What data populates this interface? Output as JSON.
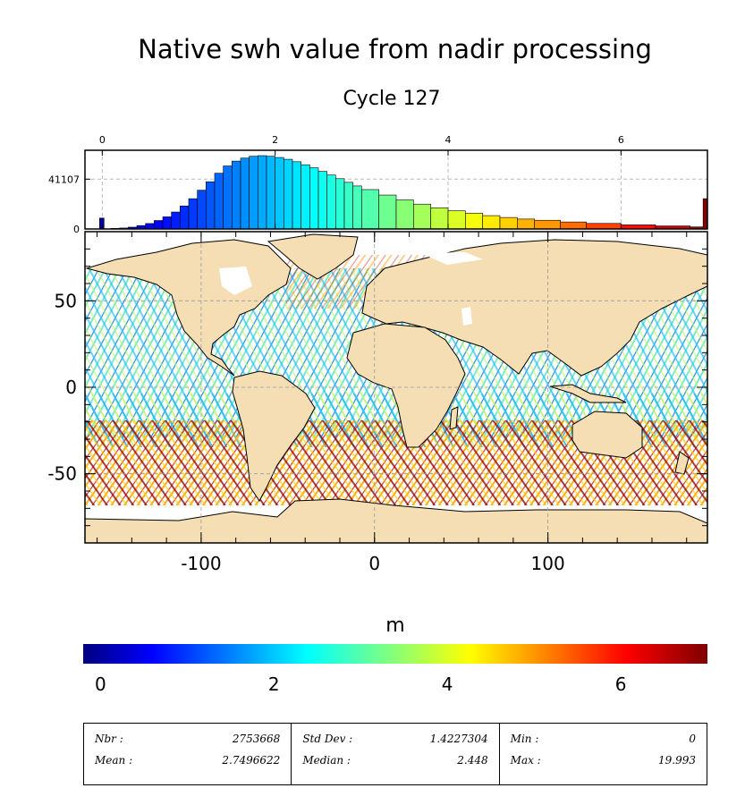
{
  "title": "Native swh value from nadir processing",
  "subtitle": "Cycle 127",
  "colorbar": {
    "unit": "m",
    "ticks": [
      "0",
      "2",
      "4",
      "6"
    ],
    "range": [
      -0.2,
      7.0
    ],
    "colors": [
      "#00007f",
      "#0000ff",
      "#00ffff",
      "#ffff00",
      "#ff0000",
      "#7f0000"
    ]
  },
  "stats": [
    [
      {
        "label": "Nbr :",
        "value": "2753668"
      },
      {
        "label": "Mean :",
        "value": "2.7496622"
      }
    ],
    [
      {
        "label": "Std Dev :",
        "value": "1.4227304"
      },
      {
        "label": "Median :",
        "value": "2.448"
      }
    ],
    [
      {
        "label": "Min :",
        "value": "0"
      },
      {
        "label": "Max :",
        "value": "19.993"
      }
    ]
  ],
  "chart_data": [
    {
      "type": "bar",
      "name": "histogram",
      "x_axis_ticks": [
        "0",
        "2",
        "4",
        "6"
      ],
      "y_axis_ticks": [
        "0",
        "41107"
      ],
      "xlim": [
        -0.2,
        7.0
      ],
      "bins_x": [
        0.0,
        0.1,
        0.2,
        0.3,
        0.4,
        0.5,
        0.6,
        0.7,
        0.8,
        0.9,
        1.0,
        1.1,
        1.2,
        1.3,
        1.4,
        1.5,
        1.6,
        1.7,
        1.8,
        1.9,
        2.0,
        2.1,
        2.2,
        2.3,
        2.4,
        2.5,
        2.6,
        2.7,
        2.8,
        2.9,
        3.0,
        3.2,
        3.4,
        3.6,
        3.8,
        4.0,
        4.2,
        4.4,
        4.6,
        4.8,
        5.0,
        5.3,
        5.6,
        6.0,
        6.4,
        6.8,
        6.95
      ],
      "bins_count": [
        9000,
        500,
        800,
        1500,
        2800,
        4500,
        7000,
        10000,
        14000,
        19000,
        25000,
        32000,
        39000,
        46000,
        52000,
        56000,
        58500,
        60000,
        60500,
        60000,
        59000,
        57500,
        55500,
        53000,
        50500,
        47500,
        44500,
        41500,
        38500,
        35500,
        32500,
        28000,
        24000,
        20500,
        17500,
        15000,
        13000,
        11000,
        9500,
        8200,
        7200,
        5800,
        4600,
        3400,
        2500,
        1700,
        25000
      ]
    },
    {
      "type": "heatmap",
      "name": "world-map",
      "x_ticks": [
        "-100",
        "0",
        "100"
      ],
      "y_ticks": [
        "50",
        "0",
        "-50"
      ],
      "xlim": [
        -167,
        192
      ],
      "ylim": [
        -90,
        90
      ]
    }
  ]
}
